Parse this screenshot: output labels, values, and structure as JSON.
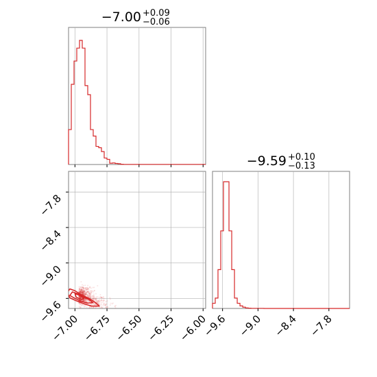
{
  "colors": {
    "series": "#d62728",
    "grid": "#b0b0b0",
    "frame": "#7f7f7f"
  },
  "titles": [
    {
      "main": "−7.00",
      "sup": "+0.09",
      "sub": "−0.06"
    },
    {
      "main": "−9.59",
      "sup": "+0.10",
      "sub": "−0.13"
    }
  ],
  "chart_data": [
    {
      "type": "histogram",
      "panel": "top-left",
      "xlim": [
        -7.05,
        -5.98
      ],
      "ylim": [
        0,
        1.06
      ],
      "grid": true,
      "xticks": [
        -7.0,
        -6.75,
        -6.5,
        -6.25,
        -6.0
      ],
      "xtick_labels": [
        "−7.00",
        "−6.75",
        "−6.50",
        "−6.25",
        "−6.00"
      ],
      "bin_edges": [
        -7.05,
        -7.0286,
        -7.0072,
        -6.9858,
        -6.9644,
        -6.943,
        -6.9216,
        -6.9002,
        -6.8788,
        -6.8574,
        -6.836,
        -6.8146,
        -6.7932,
        -6.7718,
        -6.7504,
        -6.729,
        -6.7076,
        -6.6862,
        -6.6648,
        -6.6434,
        -6.622,
        -5.98
      ],
      "values": [
        0.27,
        0.62,
        0.8,
        0.9,
        0.96,
        0.9,
        0.61,
        0.54,
        0.27,
        0.22,
        0.14,
        0.13,
        0.1,
        0.05,
        0.04,
        0.01,
        0.012,
        0.008,
        0.006,
        0.002,
        0.001
      ]
    },
    {
      "type": "scatter+contour",
      "panel": "bottom-left",
      "xlim": [
        -7.05,
        -5.98
      ],
      "ylim": [
        -9.77,
        -7.45
      ],
      "grid": true,
      "xticks": [
        -7.0,
        -6.75,
        -6.5,
        -6.25,
        -6.0
      ],
      "xtick_labels": [
        "−7.00",
        "−6.75",
        "−6.50",
        "−6.25",
        "−6.00"
      ],
      "yticks": [
        -7.8,
        -8.4,
        -9.0,
        -9.6
      ],
      "ytick_labels": [
        "−7.8",
        "−8.4",
        "−9.0",
        "−9.6"
      ],
      "contours": [
        [
          [
            -7.04,
            -9.44
          ],
          [
            -7.0,
            -9.47
          ],
          [
            -6.95,
            -9.54
          ],
          [
            -6.89,
            -9.6
          ],
          [
            -6.84,
            -9.67
          ],
          [
            -6.81,
            -9.73
          ],
          [
            -6.87,
            -9.73
          ],
          [
            -6.93,
            -9.69
          ],
          [
            -6.99,
            -9.64
          ],
          [
            -7.04,
            -9.59
          ],
          [
            -7.06,
            -9.5
          ]
        ],
        [
          [
            -7.02,
            -9.49
          ],
          [
            -6.98,
            -9.52
          ],
          [
            -6.94,
            -9.57
          ],
          [
            -6.89,
            -9.62
          ],
          [
            -6.86,
            -9.67
          ],
          [
            -6.9,
            -9.68
          ],
          [
            -6.95,
            -9.65
          ],
          [
            -7.0,
            -9.6
          ],
          [
            -7.04,
            -9.55
          ]
        ],
        [
          [
            -7.0,
            -9.52
          ],
          [
            -6.96,
            -9.55
          ],
          [
            -6.93,
            -9.6
          ],
          [
            -6.95,
            -9.62
          ],
          [
            -6.99,
            -9.58
          ]
        ]
      ],
      "scatter_cloud": {
        "center": [
          -6.97,
          -9.57
        ],
        "spread": [
          0.12,
          0.11
        ],
        "correlation": -0.75
      }
    },
    {
      "type": "histogram",
      "panel": "bottom-right",
      "xlim": [
        -9.77,
        -7.45
      ],
      "ylim": [
        0,
        1.06
      ],
      "grid": true,
      "xticks": [
        -9.6,
        -9.0,
        -8.4,
        -7.8
      ],
      "xtick_labels": [
        "−9.6",
        "−9.0",
        "−8.4",
        "−7.8"
      ],
      "bin_edges": [
        -9.77,
        -9.7235,
        -9.677,
        -9.6305,
        -9.584,
        -9.5375,
        -9.491,
        -9.4445,
        -9.398,
        -9.3515,
        -9.305,
        -9.2585,
        -9.212,
        -9.1655,
        -9.119,
        -8.9,
        -7.45
      ],
      "values": [
        0.04,
        0.08,
        0.3,
        0.6,
        0.98,
        0.98,
        0.6,
        0.3,
        0.08,
        0.04,
        0.02,
        0.01,
        0.004,
        0.002,
        0.001,
        0.0
      ]
    }
  ]
}
